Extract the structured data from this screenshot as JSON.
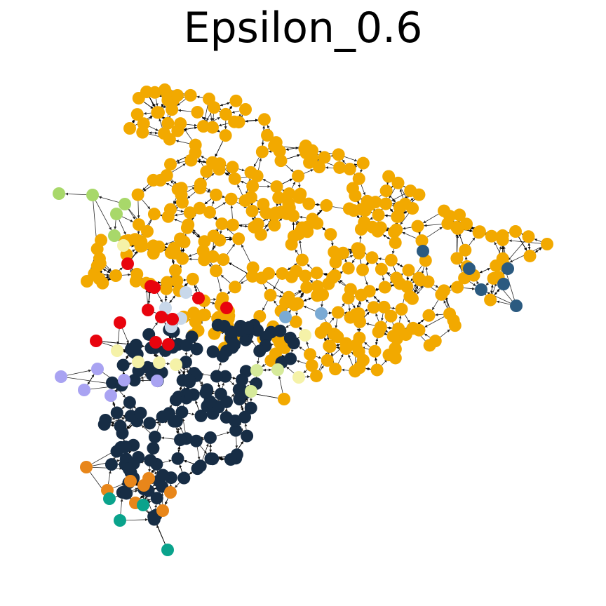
{
  "title": "Epsilon_0.6",
  "colors": {
    "orange": "#f2a900",
    "dark_navy": "#172d45",
    "steel_blue": "#2b5a80",
    "light_blue": "#7aaad4",
    "pale_blue": "#c8d8ea",
    "red": "#e8040e",
    "light_green": "#a8d86a",
    "pale_yellow": "#f5f2a8",
    "pale_green_yellow": "#d6ea9a",
    "lavender": "#a9a3f2",
    "dark_orange": "#e8861a",
    "teal": "#0aa38c"
  }
}
